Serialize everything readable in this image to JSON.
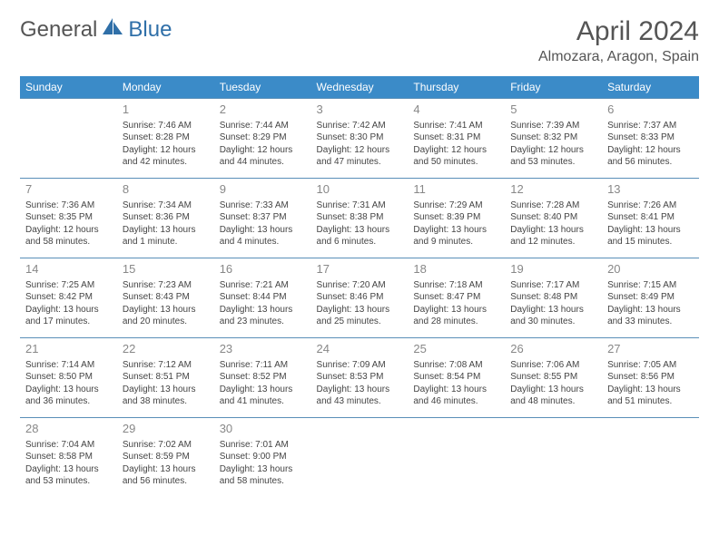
{
  "logo": {
    "text1": "General",
    "text2": "Blue",
    "color1": "#666666",
    "color2": "#2f6fa8",
    "icon_color": "#2f6fa8"
  },
  "header": {
    "month_title": "April 2024",
    "location": "Almozara, Aragon, Spain"
  },
  "day_headers": [
    "Sunday",
    "Monday",
    "Tuesday",
    "Wednesday",
    "Thursday",
    "Friday",
    "Saturday"
  ],
  "header_bg": "#3b8bc8",
  "header_fg": "#ffffff",
  "border_color": "#5a8fb8",
  "weeks": [
    [
      null,
      {
        "day": "1",
        "sunrise": "Sunrise: 7:46 AM",
        "sunset": "Sunset: 8:28 PM",
        "daylight1": "Daylight: 12 hours",
        "daylight2": "and 42 minutes."
      },
      {
        "day": "2",
        "sunrise": "Sunrise: 7:44 AM",
        "sunset": "Sunset: 8:29 PM",
        "daylight1": "Daylight: 12 hours",
        "daylight2": "and 44 minutes."
      },
      {
        "day": "3",
        "sunrise": "Sunrise: 7:42 AM",
        "sunset": "Sunset: 8:30 PM",
        "daylight1": "Daylight: 12 hours",
        "daylight2": "and 47 minutes."
      },
      {
        "day": "4",
        "sunrise": "Sunrise: 7:41 AM",
        "sunset": "Sunset: 8:31 PM",
        "daylight1": "Daylight: 12 hours",
        "daylight2": "and 50 minutes."
      },
      {
        "day": "5",
        "sunrise": "Sunrise: 7:39 AM",
        "sunset": "Sunset: 8:32 PM",
        "daylight1": "Daylight: 12 hours",
        "daylight2": "and 53 minutes."
      },
      {
        "day": "6",
        "sunrise": "Sunrise: 7:37 AM",
        "sunset": "Sunset: 8:33 PM",
        "daylight1": "Daylight: 12 hours",
        "daylight2": "and 56 minutes."
      }
    ],
    [
      {
        "day": "7",
        "sunrise": "Sunrise: 7:36 AM",
        "sunset": "Sunset: 8:35 PM",
        "daylight1": "Daylight: 12 hours",
        "daylight2": "and 58 minutes."
      },
      {
        "day": "8",
        "sunrise": "Sunrise: 7:34 AM",
        "sunset": "Sunset: 8:36 PM",
        "daylight1": "Daylight: 13 hours",
        "daylight2": "and 1 minute."
      },
      {
        "day": "9",
        "sunrise": "Sunrise: 7:33 AM",
        "sunset": "Sunset: 8:37 PM",
        "daylight1": "Daylight: 13 hours",
        "daylight2": "and 4 minutes."
      },
      {
        "day": "10",
        "sunrise": "Sunrise: 7:31 AM",
        "sunset": "Sunset: 8:38 PM",
        "daylight1": "Daylight: 13 hours",
        "daylight2": "and 6 minutes."
      },
      {
        "day": "11",
        "sunrise": "Sunrise: 7:29 AM",
        "sunset": "Sunset: 8:39 PM",
        "daylight1": "Daylight: 13 hours",
        "daylight2": "and 9 minutes."
      },
      {
        "day": "12",
        "sunrise": "Sunrise: 7:28 AM",
        "sunset": "Sunset: 8:40 PM",
        "daylight1": "Daylight: 13 hours",
        "daylight2": "and 12 minutes."
      },
      {
        "day": "13",
        "sunrise": "Sunrise: 7:26 AM",
        "sunset": "Sunset: 8:41 PM",
        "daylight1": "Daylight: 13 hours",
        "daylight2": "and 15 minutes."
      }
    ],
    [
      {
        "day": "14",
        "sunrise": "Sunrise: 7:25 AM",
        "sunset": "Sunset: 8:42 PM",
        "daylight1": "Daylight: 13 hours",
        "daylight2": "and 17 minutes."
      },
      {
        "day": "15",
        "sunrise": "Sunrise: 7:23 AM",
        "sunset": "Sunset: 8:43 PM",
        "daylight1": "Daylight: 13 hours",
        "daylight2": "and 20 minutes."
      },
      {
        "day": "16",
        "sunrise": "Sunrise: 7:21 AM",
        "sunset": "Sunset: 8:44 PM",
        "daylight1": "Daylight: 13 hours",
        "daylight2": "and 23 minutes."
      },
      {
        "day": "17",
        "sunrise": "Sunrise: 7:20 AM",
        "sunset": "Sunset: 8:46 PM",
        "daylight1": "Daylight: 13 hours",
        "daylight2": "and 25 minutes."
      },
      {
        "day": "18",
        "sunrise": "Sunrise: 7:18 AM",
        "sunset": "Sunset: 8:47 PM",
        "daylight1": "Daylight: 13 hours",
        "daylight2": "and 28 minutes."
      },
      {
        "day": "19",
        "sunrise": "Sunrise: 7:17 AM",
        "sunset": "Sunset: 8:48 PM",
        "daylight1": "Daylight: 13 hours",
        "daylight2": "and 30 minutes."
      },
      {
        "day": "20",
        "sunrise": "Sunrise: 7:15 AM",
        "sunset": "Sunset: 8:49 PM",
        "daylight1": "Daylight: 13 hours",
        "daylight2": "and 33 minutes."
      }
    ],
    [
      {
        "day": "21",
        "sunrise": "Sunrise: 7:14 AM",
        "sunset": "Sunset: 8:50 PM",
        "daylight1": "Daylight: 13 hours",
        "daylight2": "and 36 minutes."
      },
      {
        "day": "22",
        "sunrise": "Sunrise: 7:12 AM",
        "sunset": "Sunset: 8:51 PM",
        "daylight1": "Daylight: 13 hours",
        "daylight2": "and 38 minutes."
      },
      {
        "day": "23",
        "sunrise": "Sunrise: 7:11 AM",
        "sunset": "Sunset: 8:52 PM",
        "daylight1": "Daylight: 13 hours",
        "daylight2": "and 41 minutes."
      },
      {
        "day": "24",
        "sunrise": "Sunrise: 7:09 AM",
        "sunset": "Sunset: 8:53 PM",
        "daylight1": "Daylight: 13 hours",
        "daylight2": "and 43 minutes."
      },
      {
        "day": "25",
        "sunrise": "Sunrise: 7:08 AM",
        "sunset": "Sunset: 8:54 PM",
        "daylight1": "Daylight: 13 hours",
        "daylight2": "and 46 minutes."
      },
      {
        "day": "26",
        "sunrise": "Sunrise: 7:06 AM",
        "sunset": "Sunset: 8:55 PM",
        "daylight1": "Daylight: 13 hours",
        "daylight2": "and 48 minutes."
      },
      {
        "day": "27",
        "sunrise": "Sunrise: 7:05 AM",
        "sunset": "Sunset: 8:56 PM",
        "daylight1": "Daylight: 13 hours",
        "daylight2": "and 51 minutes."
      }
    ],
    [
      {
        "day": "28",
        "sunrise": "Sunrise: 7:04 AM",
        "sunset": "Sunset: 8:58 PM",
        "daylight1": "Daylight: 13 hours",
        "daylight2": "and 53 minutes."
      },
      {
        "day": "29",
        "sunrise": "Sunrise: 7:02 AM",
        "sunset": "Sunset: 8:59 PM",
        "daylight1": "Daylight: 13 hours",
        "daylight2": "and 56 minutes."
      },
      {
        "day": "30",
        "sunrise": "Sunrise: 7:01 AM",
        "sunset": "Sunset: 9:00 PM",
        "daylight1": "Daylight: 13 hours",
        "daylight2": "and 58 minutes."
      },
      null,
      null,
      null,
      null
    ]
  ]
}
